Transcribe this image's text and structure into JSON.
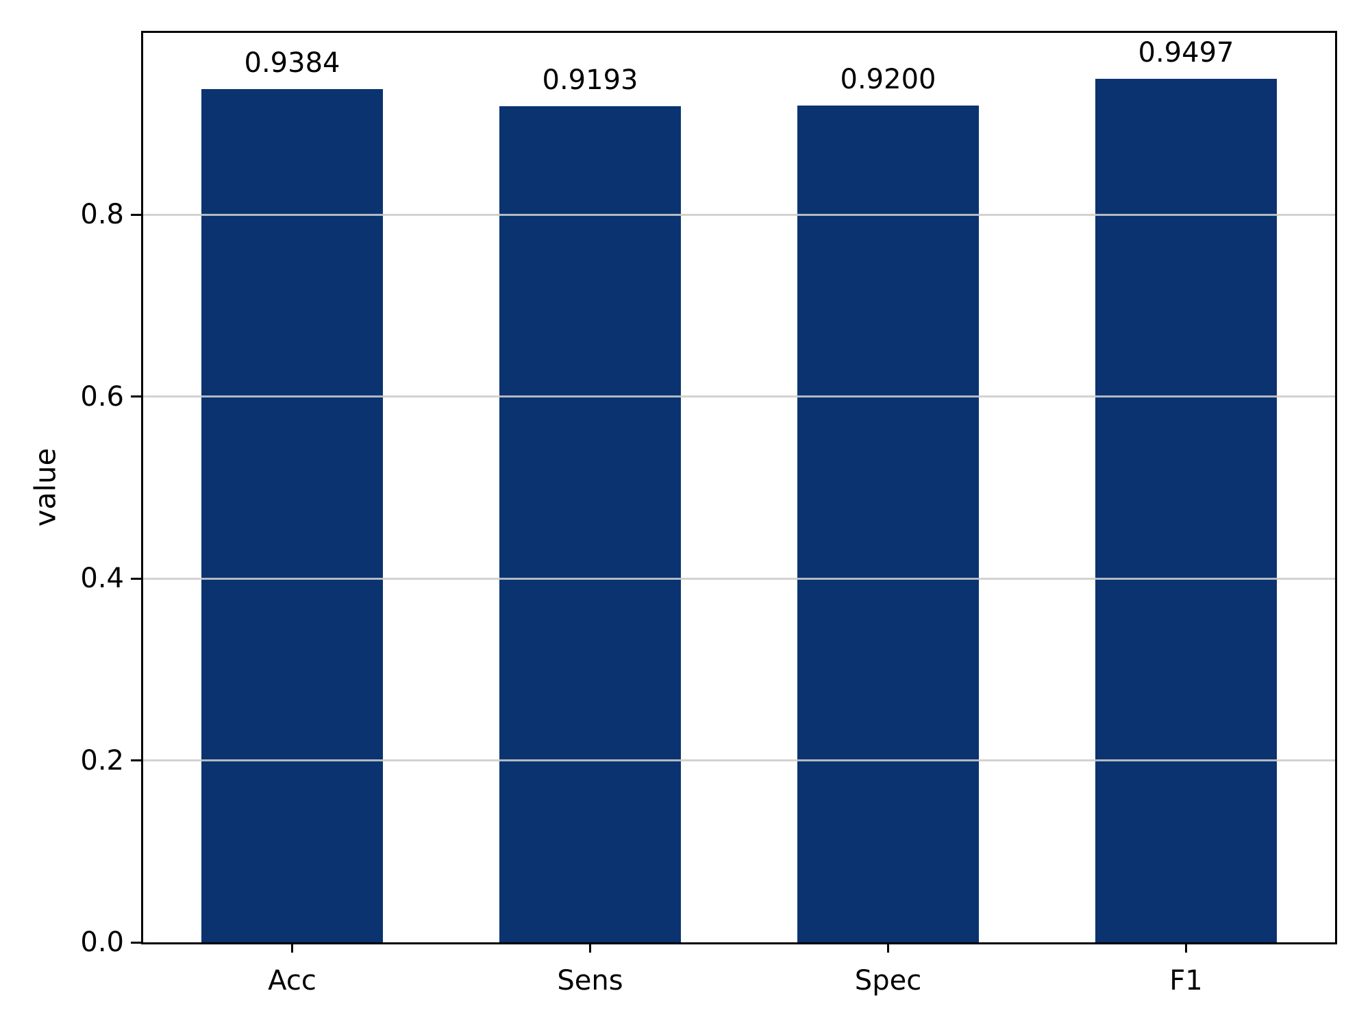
{
  "chart_data": {
    "type": "bar",
    "categories": [
      "Acc",
      "Sens",
      "Spec",
      "F1"
    ],
    "values": [
      0.9384,
      0.9193,
      0.92,
      0.9497
    ],
    "value_labels": [
      "0.9384",
      "0.9193",
      "0.9200",
      "0.9497"
    ],
    "title": "",
    "xlabel": "",
    "ylabel": "value",
    "ylim": [
      0.0,
      1.0
    ],
    "yticks": [
      0.0,
      0.2,
      0.4,
      0.6,
      0.8
    ],
    "ytick_labels": [
      "0.0",
      "0.2",
      "0.4",
      "0.6",
      "0.8"
    ],
    "grid": true,
    "grid_values": [
      0.2,
      0.4,
      0.6,
      0.8
    ],
    "legend": null,
    "bar_color": "#0a3370",
    "grid_color_rgba": "rgba(204,204,204,0.88)",
    "spine_color": "#000000",
    "text_color": "#000000",
    "bar_width_frac": 0.61
  }
}
